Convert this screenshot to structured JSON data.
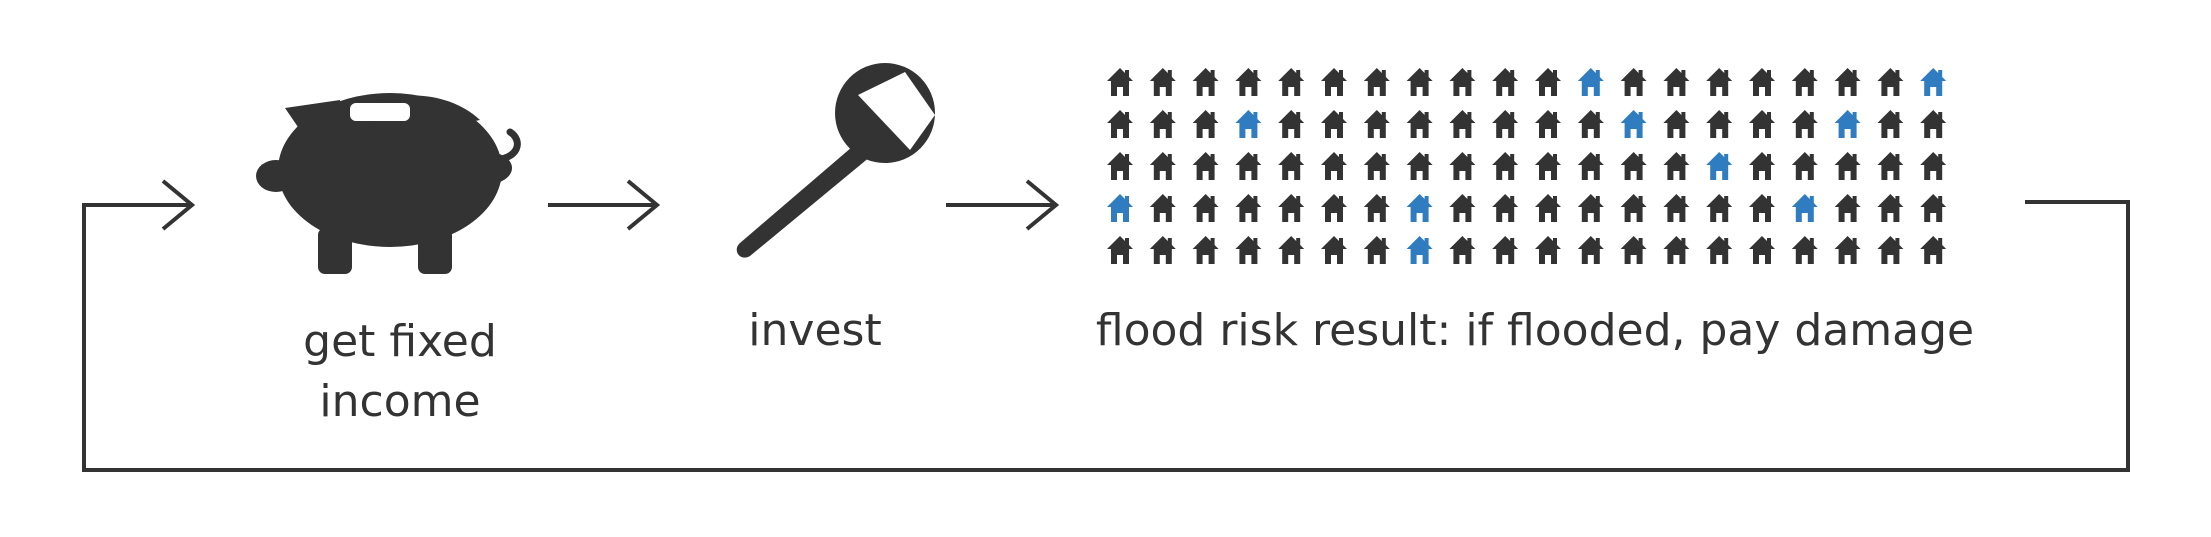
{
  "steps": [
    {
      "icon": "piggy-bank-icon",
      "label": "get fixed\nincome"
    },
    {
      "icon": "wrench-icon",
      "label": "invest"
    },
    {
      "icon": "houses-grid-icon",
      "label": "flood risk result: if flooded, pay damage"
    }
  ],
  "colors": {
    "dark": "#333333",
    "flooded": "#2f7dc0"
  },
  "house_grid": {
    "rows": 5,
    "cols": 20,
    "flooded": [
      [
        0,
        11
      ],
      [
        0,
        19
      ],
      [
        1,
        3
      ],
      [
        1,
        12
      ],
      [
        1,
        17
      ],
      [
        2,
        14
      ],
      [
        3,
        0
      ],
      [
        3,
        7
      ],
      [
        3,
        16
      ],
      [
        4,
        7
      ]
    ]
  }
}
